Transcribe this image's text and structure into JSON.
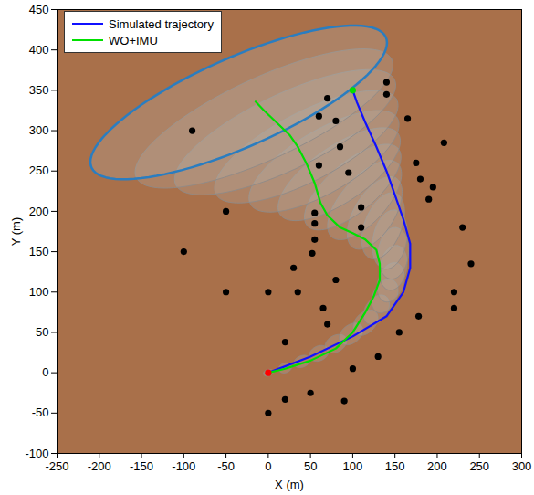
{
  "chart_data": {
    "type": "line",
    "x_label": "X (m)",
    "y_label": "Y (m)",
    "xlim": [
      -250,
      300
    ],
    "ylim": [
      -100,
      450
    ],
    "xticks": [
      -250,
      -200,
      -150,
      -100,
      -50,
      0,
      50,
      100,
      150,
      200,
      250,
      300
    ],
    "yticks": [
      -100,
      -50,
      0,
      50,
      100,
      150,
      200,
      250,
      300,
      350,
      400,
      450
    ],
    "grid": false,
    "legend": "top-left",
    "series": [
      {
        "name": "Simulated trajectory",
        "type": "line",
        "color": "#1010ff",
        "line_style": "solid",
        "x": [
          0,
          50,
          100,
          140,
          160,
          168,
          168,
          160,
          150,
          140,
          128,
          115,
          105,
          100
        ],
        "y": [
          0,
          20,
          45,
          70,
          100,
          130,
          160,
          190,
          220,
          250,
          280,
          310,
          335,
          350
        ]
      },
      {
        "name": "WO+IMU",
        "type": "line",
        "color": "#00e000",
        "line_style": "solid",
        "x": [
          0,
          20,
          50,
          80,
          100,
          115,
          125,
          132,
          132,
          128,
          115,
          100,
          85,
          70,
          62,
          55,
          45,
          35,
          25,
          10,
          -5,
          -15
        ],
        "y": [
          0,
          5,
          15,
          30,
          50,
          75,
          95,
          115,
          135,
          152,
          165,
          173,
          180,
          195,
          210,
          235,
          260,
          280,
          295,
          310,
          325,
          336
        ]
      },
      {
        "type": "scatter",
        "color": "#000000",
        "marker": "circle",
        "x": [
          -90,
          -50,
          -100,
          -50,
          0,
          35,
          30,
          52,
          55,
          55,
          55,
          60,
          70,
          60,
          80,
          85,
          95,
          110,
          110,
          80,
          65,
          70,
          20,
          100,
          130,
          155,
          178,
          220,
          220,
          240,
          230,
          190,
          195,
          180,
          175,
          165,
          140,
          140,
          208,
          0,
          20,
          50,
          90
        ],
        "y": [
          300,
          200,
          150,
          100,
          100,
          100,
          130,
          148,
          165,
          185,
          198,
          257,
          340,
          318,
          312,
          280,
          248,
          205,
          180,
          115,
          80,
          60,
          38,
          5,
          20,
          50,
          70,
          100,
          80,
          135,
          180,
          215,
          230,
          240,
          260,
          315,
          345,
          360,
          285,
          -50,
          -33,
          -25,
          -35
        ]
      },
      {
        "type": "scatter",
        "color": "#ff0000",
        "marker": "circle",
        "x": [
          0
        ],
        "y": [
          0
        ]
      },
      {
        "type": "scatter",
        "color": "#00e000",
        "marker": "circle",
        "x": [
          100
        ],
        "y": [
          350
        ]
      }
    ],
    "ellipses": [
      {
        "x": 0,
        "y": 0,
        "a": 6,
        "b": 4,
        "angle": 20
      },
      {
        "x": 20,
        "y": 6,
        "a": 8,
        "b": 6,
        "angle": 22
      },
      {
        "x": 40,
        "y": 14,
        "a": 10,
        "b": 7,
        "angle": 25
      },
      {
        "x": 60,
        "y": 24,
        "a": 12,
        "b": 9,
        "angle": 30
      },
      {
        "x": 80,
        "y": 36,
        "a": 14,
        "b": 10,
        "angle": 35
      },
      {
        "x": 98,
        "y": 48,
        "a": 16,
        "b": 11,
        "angle": 42
      },
      {
        "x": 115,
        "y": 62,
        "a": 18,
        "b": 12,
        "angle": 50
      },
      {
        "x": 128,
        "y": 78,
        "a": 20,
        "b": 13,
        "angle": 58
      },
      {
        "x": 138,
        "y": 95,
        "a": 22,
        "b": 14,
        "angle": 66
      },
      {
        "x": 145,
        "y": 112,
        "a": 25,
        "b": 15,
        "angle": 74
      },
      {
        "x": 148,
        "y": 130,
        "a": 28,
        "b": 16,
        "angle": 80
      },
      {
        "x": 148,
        "y": 148,
        "a": 32,
        "b": 18,
        "angle": 85
      },
      {
        "x": 144,
        "y": 165,
        "a": 37,
        "b": 20,
        "angle": 80
      },
      {
        "x": 136,
        "y": 182,
        "a": 43,
        "b": 22,
        "angle": 70
      },
      {
        "x": 126,
        "y": 198,
        "a": 50,
        "b": 24,
        "angle": 60
      },
      {
        "x": 114,
        "y": 214,
        "a": 60,
        "b": 27,
        "angle": 50
      },
      {
        "x": 100,
        "y": 230,
        "a": 72,
        "b": 30,
        "angle": 42
      },
      {
        "x": 84,
        "y": 246,
        "a": 86,
        "b": 34,
        "angle": 36
      },
      {
        "x": 66,
        "y": 262,
        "a": 102,
        "b": 38,
        "angle": 32
      },
      {
        "x": 45,
        "y": 280,
        "a": 122,
        "b": 42,
        "angle": 29
      },
      {
        "x": 20,
        "y": 298,
        "a": 145,
        "b": 46,
        "angle": 27
      },
      {
        "x": -5,
        "y": 315,
        "a": 168,
        "b": 50,
        "angle": 26
      },
      {
        "x": -35,
        "y": 335,
        "a": 192,
        "b": 55,
        "angle": 25
      }
    ]
  }
}
